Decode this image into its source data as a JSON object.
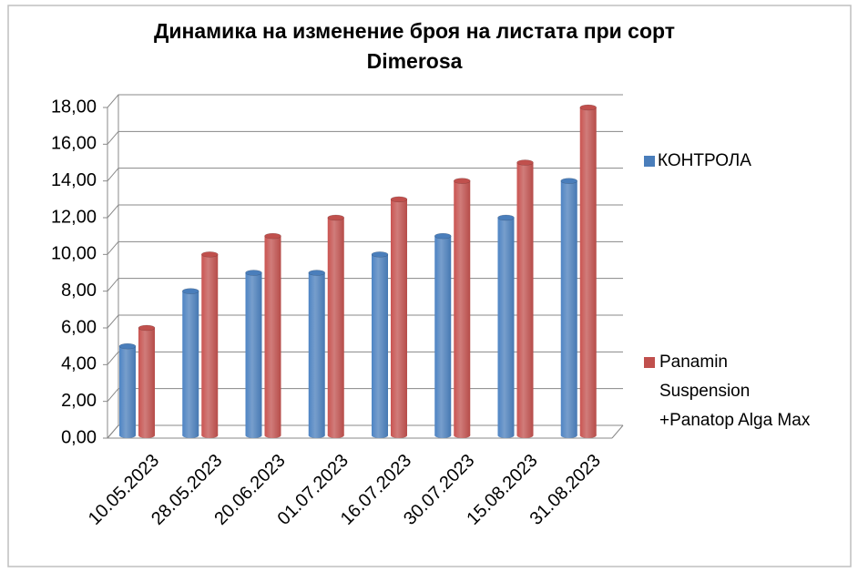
{
  "chart_data": {
    "type": "bar",
    "title": "Динамика на изменение броя на листата при сорт Dimerosa",
    "categories": [
      "10.05.2023",
      "28.05.2023",
      "20.06.2023",
      "01.07.2023",
      "16.07.2023",
      "30.07.2023",
      "15.08.2023",
      "31.08.2023"
    ],
    "series": [
      {
        "name": "КОНТРОЛА",
        "color": "#4a7ebb",
        "values": [
          5,
          8,
          9,
          9,
          10,
          11,
          12,
          14
        ]
      },
      {
        "name": "Panamin Suspension +Panatop Alga Max",
        "color": "#c0504d",
        "values": [
          6,
          10,
          11,
          12,
          13,
          14,
          15,
          18
        ]
      }
    ],
    "ylim": [
      0,
      18
    ],
    "yticks": [
      {
        "value": 0,
        "label": "0,00"
      },
      {
        "value": 2,
        "label": "2,00"
      },
      {
        "value": 4,
        "label": "4,00"
      },
      {
        "value": 6,
        "label": "6,00"
      },
      {
        "value": 8,
        "label": "8,00"
      },
      {
        "value": 10,
        "label": "10,00"
      },
      {
        "value": 12,
        "label": "12,00"
      },
      {
        "value": 14,
        "label": "14,00"
      },
      {
        "value": 16,
        "label": "16,00"
      },
      {
        "value": 18,
        "label": "18,00"
      }
    ],
    "grid": true,
    "legend": "right"
  }
}
